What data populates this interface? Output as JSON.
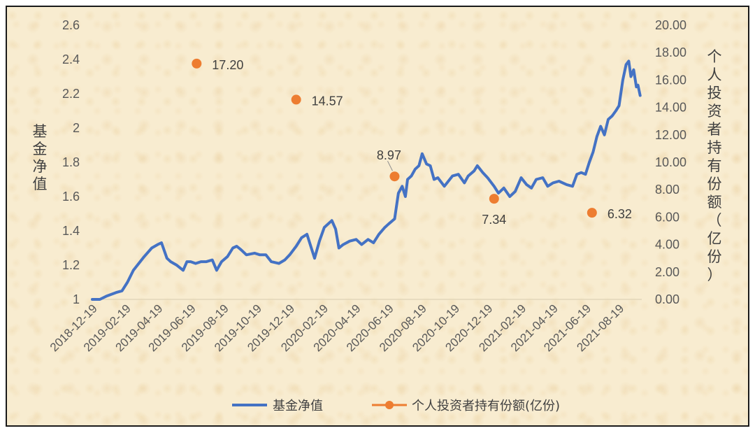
{
  "chart_data": {
    "type": "line",
    "left_axis": {
      "title": "基金净值",
      "min": 1,
      "max": 2.6,
      "ticks": [
        "1",
        "1.2",
        "1.4",
        "1.6",
        "1.8",
        "2",
        "2.2",
        "2.4",
        "2.6"
      ]
    },
    "right_axis": {
      "title": "个人投资者持有份额（亿份）",
      "min": 0,
      "max": 20,
      "ticks": [
        "0.00",
        "2.00",
        "4.00",
        "6.00",
        "8.00",
        "10.00",
        "12.00",
        "14.00",
        "16.00",
        "18.00",
        "20.00"
      ]
    },
    "x_ticks": [
      "2018-12-19",
      "2019-02-19",
      "2019-04-19",
      "2019-06-19",
      "2019-08-19",
      "2019-10-19",
      "2019-12-19",
      "2020-02-19",
      "2020-04-19",
      "2020-06-19",
      "2020-08-19",
      "2020-10-19",
      "2020-12-19",
      "2021-02-19",
      "2021-04-19",
      "2021-06-19",
      "2021-08-19"
    ],
    "x_range": [
      "2018-12-19",
      "2021-09-30"
    ],
    "grid": false,
    "legend_position": "bottom",
    "series": [
      {
        "name": "基金净值",
        "axis": "left",
        "color": "#4472c4",
        "points": [
          [
            "2018-12-19",
            1.0
          ],
          [
            "2019-01-02",
            1.0
          ],
          [
            "2019-01-15",
            1.02
          ],
          [
            "2019-02-01",
            1.04
          ],
          [
            "2019-02-12",
            1.05
          ],
          [
            "2019-02-22",
            1.1
          ],
          [
            "2019-03-05",
            1.17
          ],
          [
            "2019-03-15",
            1.21
          ],
          [
            "2019-03-25",
            1.25
          ],
          [
            "2019-04-08",
            1.3
          ],
          [
            "2019-04-19",
            1.32
          ],
          [
            "2019-04-26",
            1.33
          ],
          [
            "2019-05-06",
            1.24
          ],
          [
            "2019-05-13",
            1.22
          ],
          [
            "2019-05-24",
            1.2
          ],
          [
            "2019-06-05",
            1.17
          ],
          [
            "2019-06-12",
            1.22
          ],
          [
            "2019-06-19",
            1.22
          ],
          [
            "2019-06-28",
            1.21
          ],
          [
            "2019-07-08",
            1.22
          ],
          [
            "2019-07-18",
            1.22
          ],
          [
            "2019-07-29",
            1.23
          ],
          [
            "2019-08-06",
            1.17
          ],
          [
            "2019-08-15",
            1.22
          ],
          [
            "2019-08-26",
            1.25
          ],
          [
            "2019-09-05",
            1.3
          ],
          [
            "2019-09-12",
            1.31
          ],
          [
            "2019-09-20",
            1.29
          ],
          [
            "2019-09-30",
            1.26
          ],
          [
            "2019-10-15",
            1.27
          ],
          [
            "2019-10-25",
            1.26
          ],
          [
            "2019-11-05",
            1.26
          ],
          [
            "2019-11-15",
            1.22
          ],
          [
            "2019-11-29",
            1.21
          ],
          [
            "2019-12-10",
            1.23
          ],
          [
            "2019-12-19",
            1.26
          ],
          [
            "2019-12-31",
            1.31
          ],
          [
            "2020-01-10",
            1.36
          ],
          [
            "2020-01-20",
            1.38
          ],
          [
            "2020-02-03",
            1.24
          ],
          [
            "2020-02-12",
            1.34
          ],
          [
            "2020-02-21",
            1.42
          ],
          [
            "2020-02-28",
            1.44
          ],
          [
            "2020-03-06",
            1.46
          ],
          [
            "2020-03-13",
            1.41
          ],
          [
            "2020-03-19",
            1.3
          ],
          [
            "2020-03-27",
            1.32
          ],
          [
            "2020-04-08",
            1.34
          ],
          [
            "2020-04-20",
            1.35
          ],
          [
            "2020-04-30",
            1.32
          ],
          [
            "2020-05-12",
            1.35
          ],
          [
            "2020-05-22",
            1.33
          ],
          [
            "2020-06-01",
            1.38
          ],
          [
            "2020-06-12",
            1.42
          ],
          [
            "2020-06-19",
            1.44
          ],
          [
            "2020-06-30",
            1.47
          ],
          [
            "2020-07-07",
            1.62
          ],
          [
            "2020-07-14",
            1.66
          ],
          [
            "2020-07-20",
            1.6
          ],
          [
            "2020-07-24",
            1.7
          ],
          [
            "2020-07-31",
            1.72
          ],
          [
            "2020-08-07",
            1.76
          ],
          [
            "2020-08-14",
            1.78
          ],
          [
            "2020-08-20",
            1.85
          ],
          [
            "2020-08-28",
            1.79
          ],
          [
            "2020-09-04",
            1.78
          ],
          [
            "2020-09-11",
            1.7
          ],
          [
            "2020-09-18",
            1.71
          ],
          [
            "2020-09-30",
            1.66
          ],
          [
            "2020-10-15",
            1.72
          ],
          [
            "2020-10-26",
            1.73
          ],
          [
            "2020-11-06",
            1.68
          ],
          [
            "2020-11-13",
            1.72
          ],
          [
            "2020-11-24",
            1.75
          ],
          [
            "2020-11-30",
            1.78
          ],
          [
            "2020-12-10",
            1.74
          ],
          [
            "2020-12-19",
            1.71
          ],
          [
            "2020-12-31",
            1.66
          ],
          [
            "2021-01-08",
            1.62
          ],
          [
            "2021-01-18",
            1.65
          ],
          [
            "2021-01-29",
            1.6
          ],
          [
            "2021-02-08",
            1.63
          ],
          [
            "2021-02-19",
            1.71
          ],
          [
            "2021-03-01",
            1.67
          ],
          [
            "2021-03-10",
            1.65
          ],
          [
            "2021-03-19",
            1.7
          ],
          [
            "2021-03-31",
            1.71
          ],
          [
            "2021-04-09",
            1.66
          ],
          [
            "2021-04-19",
            1.68
          ],
          [
            "2021-04-30",
            1.69
          ],
          [
            "2021-05-14",
            1.67
          ],
          [
            "2021-05-25",
            1.66
          ],
          [
            "2021-06-02",
            1.73
          ],
          [
            "2021-06-10",
            1.74
          ],
          [
            "2021-06-18",
            1.73
          ],
          [
            "2021-06-25",
            1.8
          ],
          [
            "2021-07-02",
            1.86
          ],
          [
            "2021-07-09",
            1.95
          ],
          [
            "2021-07-16",
            2.01
          ],
          [
            "2021-07-23",
            1.96
          ],
          [
            "2021-07-30",
            2.05
          ],
          [
            "2021-08-06",
            2.07
          ],
          [
            "2021-08-13",
            2.1
          ],
          [
            "2021-08-19",
            2.13
          ],
          [
            "2021-08-26",
            2.28
          ],
          [
            "2021-09-01",
            2.37
          ],
          [
            "2021-09-06",
            2.39
          ],
          [
            "2021-09-10",
            2.3
          ],
          [
            "2021-09-15",
            2.34
          ],
          [
            "2021-09-20",
            2.24
          ],
          [
            "2021-09-23",
            2.25
          ],
          [
            "2021-09-27",
            2.19
          ]
        ]
      },
      {
        "name": "个人投资者持有份额(亿份)",
        "axis": "right",
        "color": "#ed7d31",
        "points": [
          [
            "2019-06-30",
            17.2,
            "17.20"
          ],
          [
            "2019-12-31",
            14.57,
            "14.57"
          ],
          [
            "2020-06-30",
            8.97,
            "8.97"
          ],
          [
            "2020-12-31",
            7.34,
            "7.34"
          ],
          [
            "2021-06-30",
            6.32,
            "6.32"
          ]
        ]
      }
    ]
  }
}
